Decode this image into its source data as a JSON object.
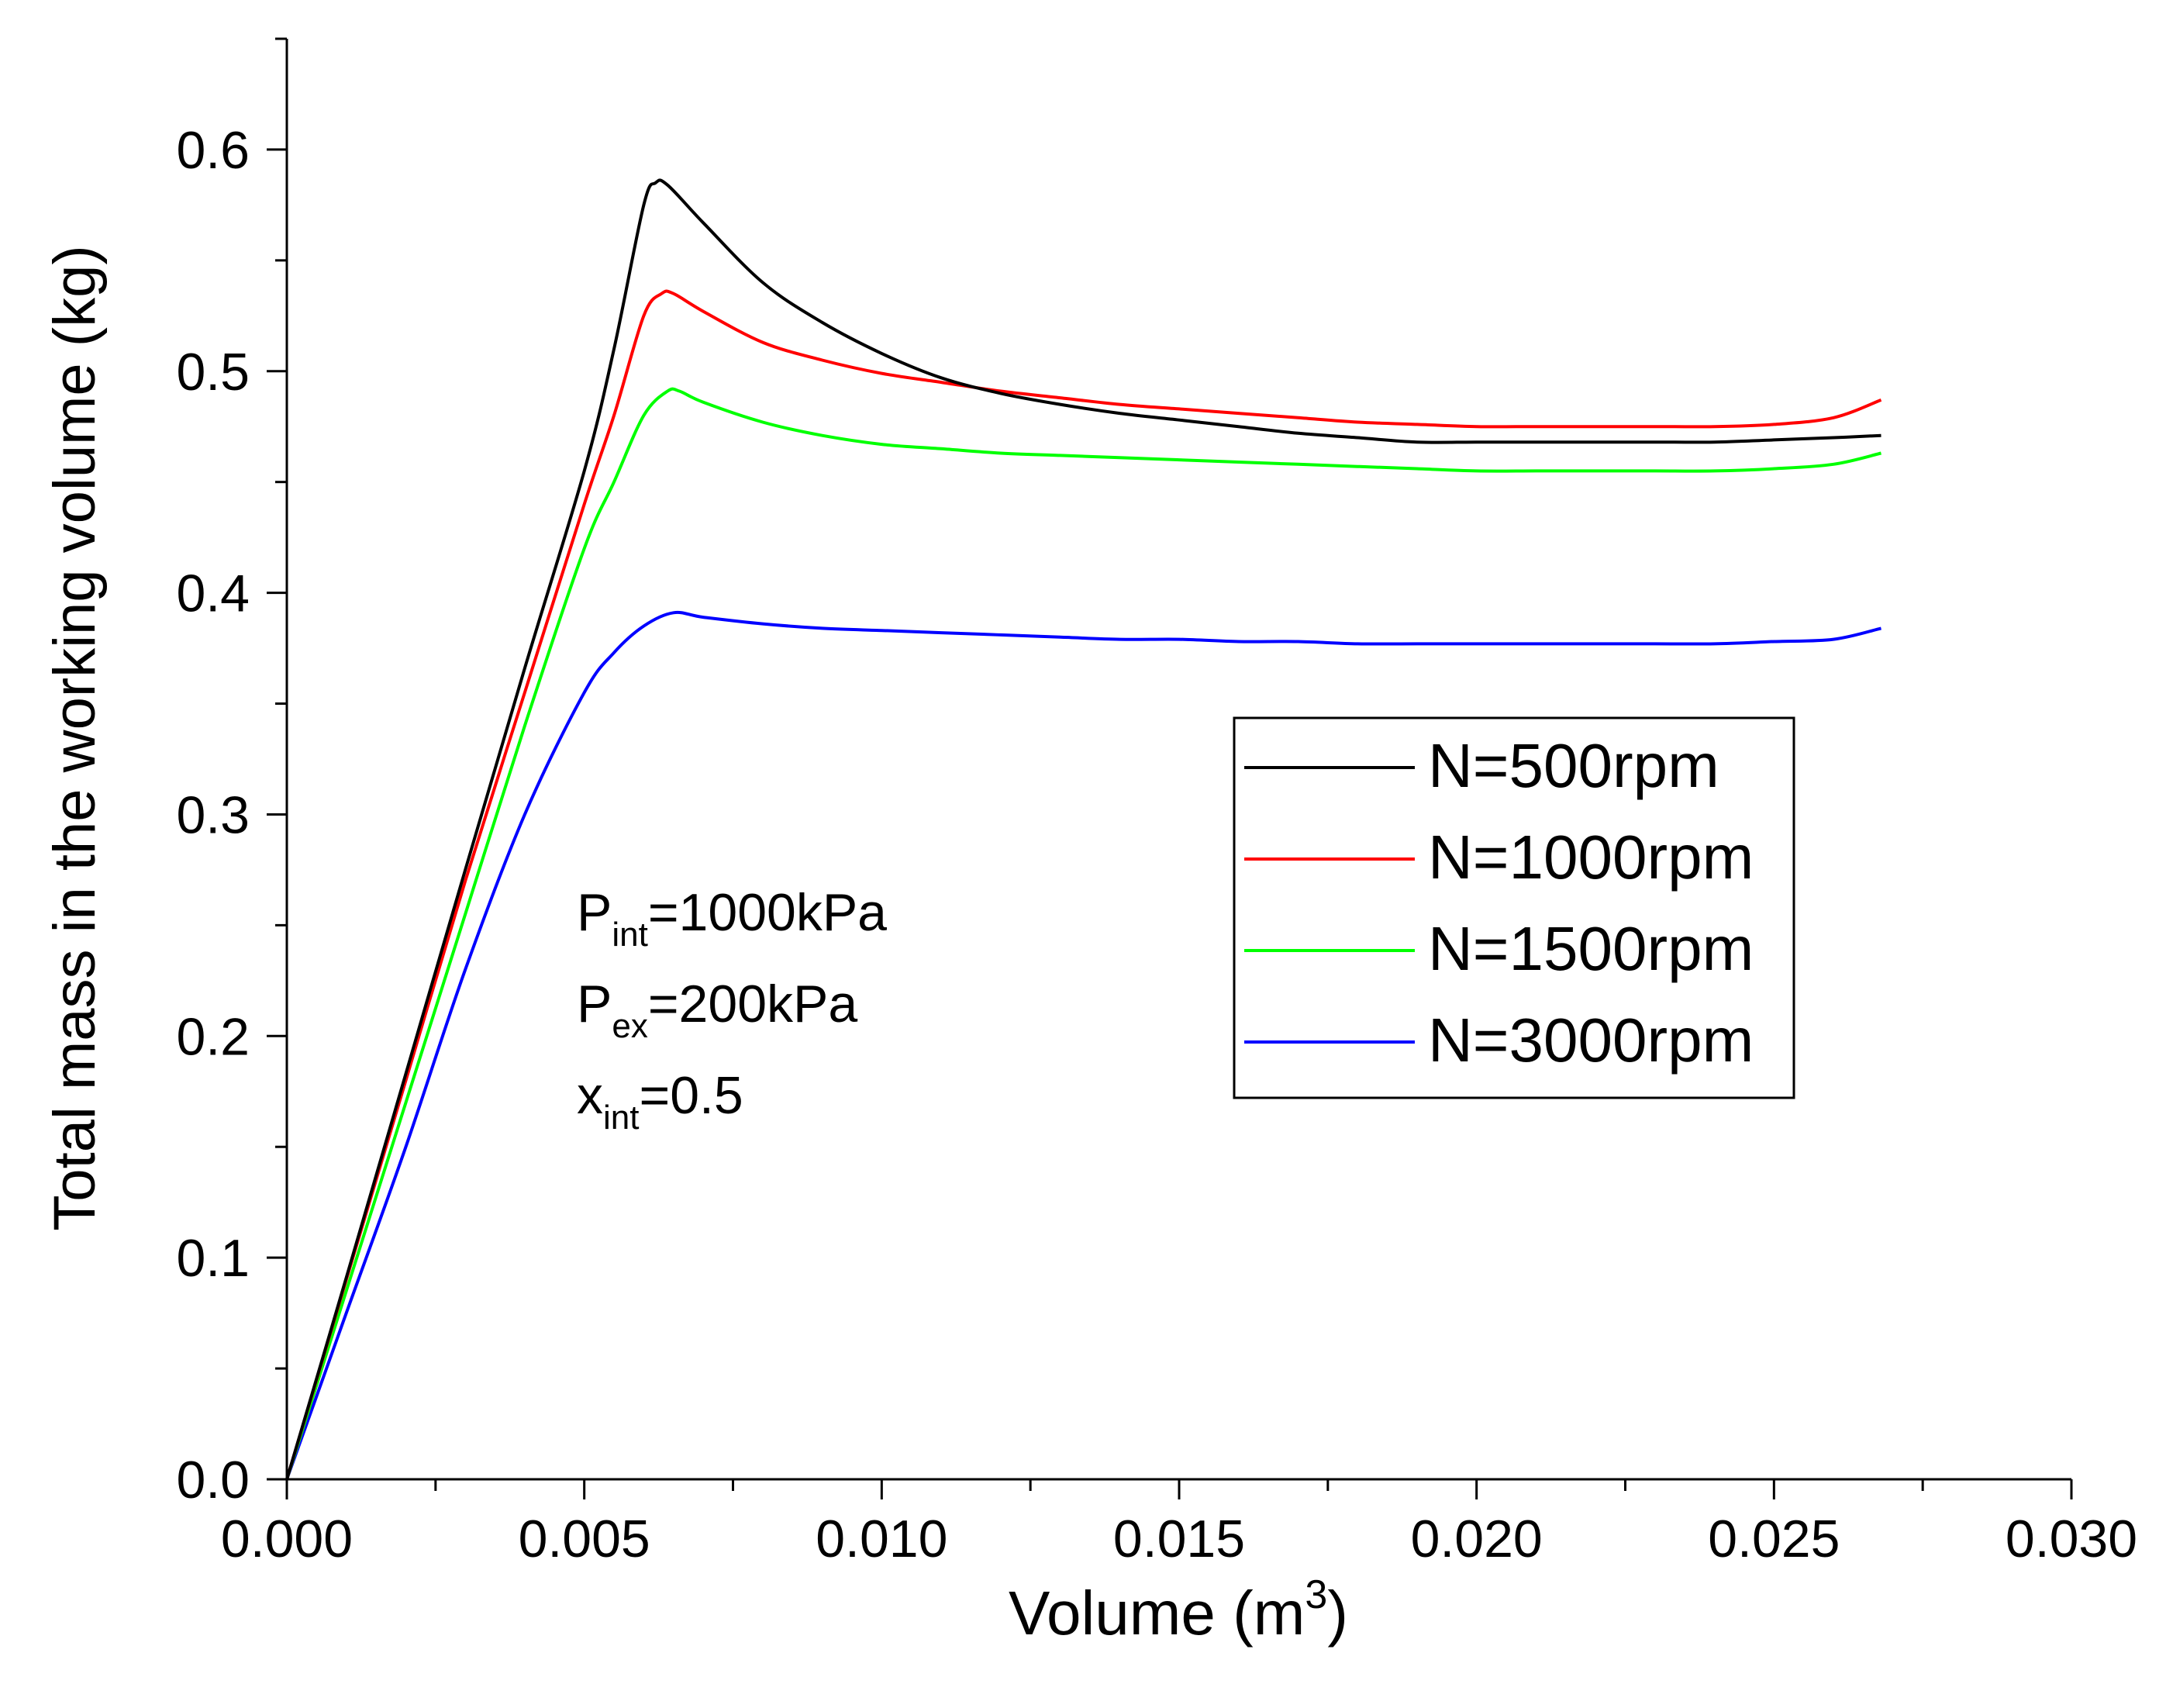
{
  "chart_data": {
    "type": "line",
    "title": "",
    "xlabel": "Volume (m",
    "xlabel_sup": "3",
    "xlabel_end": ")",
    "ylabel": "Total mass in the working volume (kg)",
    "xlim": [
      0.0,
      0.03
    ],
    "ylim": [
      0.0,
      0.65
    ],
    "xticks": [
      0.0,
      0.005,
      0.01,
      0.015,
      0.02,
      0.025,
      0.03
    ],
    "xtick_labels": [
      "0.000",
      "0.005",
      "0.010",
      "0.015",
      "0.020",
      "0.025",
      "0.030"
    ],
    "yticks": [
      0.0,
      0.1,
      0.2,
      0.3,
      0.4,
      0.5,
      0.6
    ],
    "ytick_labels": [
      "0.0",
      "0.1",
      "0.2",
      "0.3",
      "0.4",
      "0.5",
      "0.6"
    ],
    "x_minor_step": 0.0025,
    "y_minor_step": 0.05,
    "grid": false,
    "legend_position": "middle-right",
    "annotations": [
      {
        "base": "P",
        "sub": "int",
        "rest": "=1000kPa"
      },
      {
        "base": "P",
        "sub": "ex",
        "rest": "=200kPa"
      },
      {
        "base": "x",
        "sub": "int",
        "rest": "=0.5"
      }
    ],
    "series": [
      {
        "name": "N=500rpm",
        "color": "#000000",
        "points": [
          [
            0,
            0
          ],
          [
            0.001,
            0.091
          ],
          [
            0.002,
            0.183
          ],
          [
            0.003,
            0.275
          ],
          [
            0.004,
            0.366
          ],
          [
            0.005,
            0.455
          ],
          [
            0.0055,
            0.51
          ],
          [
            0.006,
            0.575
          ],
          [
            0.0062,
            0.585
          ],
          [
            0.0064,
            0.584
          ],
          [
            0.007,
            0.567
          ],
          [
            0.008,
            0.54
          ],
          [
            0.009,
            0.522
          ],
          [
            0.01,
            0.508
          ],
          [
            0.011,
            0.497
          ],
          [
            0.012,
            0.49
          ],
          [
            0.013,
            0.485
          ],
          [
            0.014,
            0.481
          ],
          [
            0.015,
            0.478
          ],
          [
            0.016,
            0.475
          ],
          [
            0.017,
            0.472
          ],
          [
            0.018,
            0.47
          ],
          [
            0.019,
            0.468
          ],
          [
            0.02,
            0.468
          ],
          [
            0.021,
            0.468
          ],
          [
            0.022,
            0.468
          ],
          [
            0.023,
            0.468
          ],
          [
            0.024,
            0.468
          ],
          [
            0.025,
            0.469
          ],
          [
            0.026,
            0.47
          ],
          [
            0.0268,
            0.471
          ]
        ]
      },
      {
        "name": "N=1000rpm",
        "color": "#ff0000",
        "points": [
          [
            0,
            0
          ],
          [
            0.001,
            0.09
          ],
          [
            0.002,
            0.18
          ],
          [
            0.003,
            0.27
          ],
          [
            0.004,
            0.355
          ],
          [
            0.005,
            0.44
          ],
          [
            0.0055,
            0.48
          ],
          [
            0.006,
            0.525
          ],
          [
            0.0063,
            0.535
          ],
          [
            0.0065,
            0.535
          ],
          [
            0.007,
            0.527
          ],
          [
            0.008,
            0.513
          ],
          [
            0.009,
            0.505
          ],
          [
            0.01,
            0.499
          ],
          [
            0.011,
            0.495
          ],
          [
            0.012,
            0.491
          ],
          [
            0.013,
            0.488
          ],
          [
            0.014,
            0.485
          ],
          [
            0.015,
            0.483
          ],
          [
            0.016,
            0.481
          ],
          [
            0.017,
            0.479
          ],
          [
            0.018,
            0.477
          ],
          [
            0.019,
            0.476
          ],
          [
            0.02,
            0.475
          ],
          [
            0.021,
            0.475
          ],
          [
            0.022,
            0.475
          ],
          [
            0.023,
            0.475
          ],
          [
            0.024,
            0.475
          ],
          [
            0.025,
            0.476
          ],
          [
            0.026,
            0.479
          ],
          [
            0.0268,
            0.487
          ]
        ]
      },
      {
        "name": "N=1500rpm",
        "color": "#00ff00",
        "points": [
          [
            0,
            0
          ],
          [
            0.001,
            0.085
          ],
          [
            0.002,
            0.17
          ],
          [
            0.003,
            0.255
          ],
          [
            0.004,
            0.34
          ],
          [
            0.005,
            0.42
          ],
          [
            0.0055,
            0.45
          ],
          [
            0.006,
            0.48
          ],
          [
            0.0064,
            0.491
          ],
          [
            0.0066,
            0.491
          ],
          [
            0.007,
            0.486
          ],
          [
            0.008,
            0.477
          ],
          [
            0.009,
            0.471
          ],
          [
            0.01,
            0.467
          ],
          [
            0.011,
            0.465
          ],
          [
            0.012,
            0.463
          ],
          [
            0.013,
            0.462
          ],
          [
            0.014,
            0.461
          ],
          [
            0.015,
            0.46
          ],
          [
            0.016,
            0.459
          ],
          [
            0.017,
            0.458
          ],
          [
            0.018,
            0.457
          ],
          [
            0.019,
            0.456
          ],
          [
            0.02,
            0.455
          ],
          [
            0.021,
            0.455
          ],
          [
            0.022,
            0.455
          ],
          [
            0.023,
            0.455
          ],
          [
            0.024,
            0.455
          ],
          [
            0.025,
            0.456
          ],
          [
            0.026,
            0.458
          ],
          [
            0.0268,
            0.463
          ]
        ]
      },
      {
        "name": "N=3000rpm",
        "color": "#0000ff",
        "points": [
          [
            0,
            0
          ],
          [
            0.001,
            0.075
          ],
          [
            0.002,
            0.15
          ],
          [
            0.003,
            0.23
          ],
          [
            0.004,
            0.3
          ],
          [
            0.005,
            0.355
          ],
          [
            0.0055,
            0.373
          ],
          [
            0.006,
            0.385
          ],
          [
            0.0065,
            0.391
          ],
          [
            0.007,
            0.389
          ],
          [
            0.008,
            0.386
          ],
          [
            0.009,
            0.384
          ],
          [
            0.01,
            0.383
          ],
          [
            0.011,
            0.382
          ],
          [
            0.012,
            0.381
          ],
          [
            0.013,
            0.38
          ],
          [
            0.014,
            0.379
          ],
          [
            0.015,
            0.379
          ],
          [
            0.016,
            0.378
          ],
          [
            0.017,
            0.378
          ],
          [
            0.018,
            0.377
          ],
          [
            0.019,
            0.377
          ],
          [
            0.02,
            0.377
          ],
          [
            0.021,
            0.377
          ],
          [
            0.022,
            0.377
          ],
          [
            0.023,
            0.377
          ],
          [
            0.024,
            0.377
          ],
          [
            0.025,
            0.378
          ],
          [
            0.026,
            0.379
          ],
          [
            0.0268,
            0.384
          ]
        ]
      }
    ]
  }
}
